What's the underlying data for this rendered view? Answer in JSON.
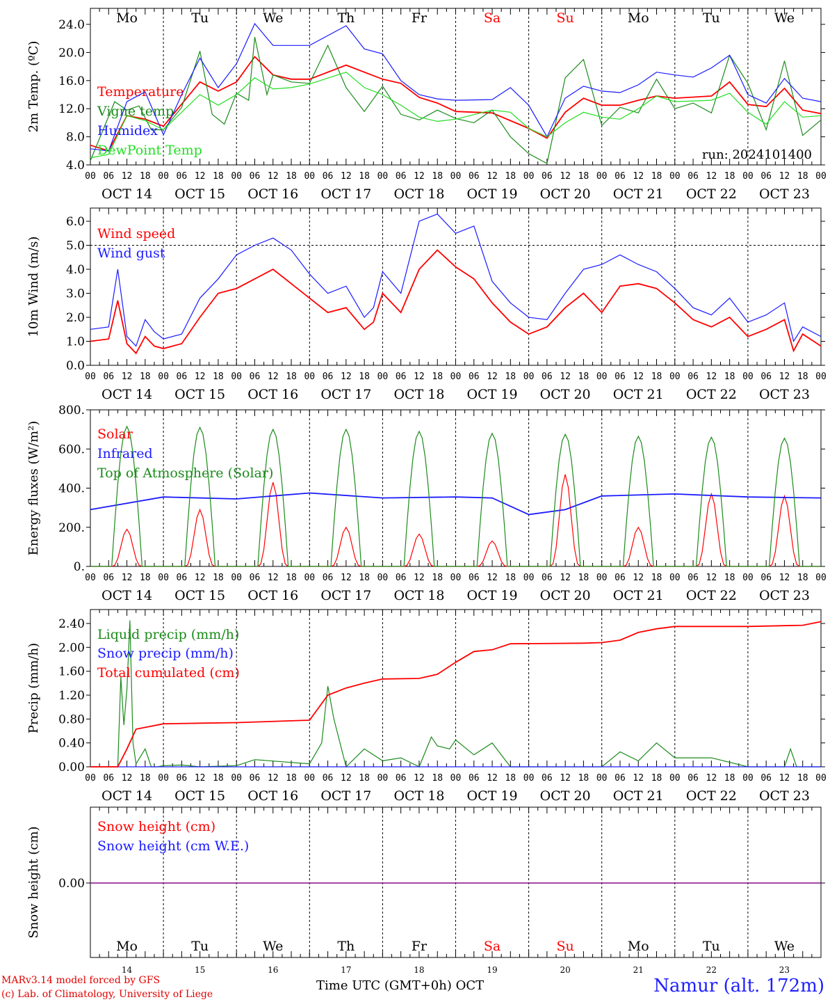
{
  "meta": {
    "run_label": "run: 2024101400"
  },
  "days": {
    "abbr": [
      "Mo",
      "Tu",
      "We",
      "Th",
      "Fr",
      "Sa",
      "Su",
      "Mo",
      "Tu",
      "We"
    ],
    "weekend": [
      false,
      false,
      false,
      false,
      false,
      true,
      true,
      false,
      false,
      false
    ],
    "dates": [
      "OCT 14",
      "OCT 15",
      "OCT 16",
      "OCT 17",
      "OCT 18",
      "OCT 19",
      "OCT 20",
      "OCT 21",
      "OCT 22",
      "OCT 23"
    ],
    "day_numbers": [
      "14",
      "15",
      "16",
      "17",
      "18",
      "19",
      "20",
      "21",
      "22",
      "23"
    ],
    "hour_ticks": [
      "00",
      "06",
      "12",
      "18"
    ],
    "final_tick": "00"
  },
  "footer": {
    "credit_line1": "MARv3.14 model forced by GFS",
    "credit_line2": "(c) Lab. of Climatology, University of Liege",
    "time_axis_label": "Time UTC (GMT+0h)",
    "month": "OCT",
    "station": "Namur (alt. 172m)"
  },
  "colors": {
    "red": "#ff0000",
    "green": "#1a8a1a",
    "blue": "#1a1aff",
    "lightgreen": "#22dd22",
    "purple": "#800080",
    "weekend": "#ff0000"
  },
  "chart_data": [
    {
      "type": "line",
      "ylabel": "2m Temp. (ºC)",
      "ylim": [
        4,
        26
      ],
      "yticks": [
        "4.0",
        "8.0",
        "12.0",
        "16.0",
        "20.0",
        "24.0"
      ],
      "x_unit": "hours since 2024-10-14 00 UTC",
      "show_day_names": true,
      "series": [
        {
          "name": "Temperature",
          "color": "red",
          "x": [
            0,
            6,
            12,
            18,
            24,
            36,
            42,
            48,
            54,
            60,
            66,
            72,
            84,
            96,
            102,
            108,
            114,
            120,
            132,
            144,
            150,
            156,
            162,
            168,
            174,
            180,
            186,
            192,
            204,
            210,
            216,
            222,
            228,
            234,
            240
          ],
          "values": [
            6.8,
            6.0,
            11.0,
            10.5,
            9.5,
            15.8,
            14.5,
            15.8,
            19.4,
            16.8,
            16.2,
            16.2,
            18.2,
            16.2,
            15.6,
            13.6,
            12.8,
            11.6,
            11.4,
            9.2,
            7.8,
            11.5,
            13.5,
            12.5,
            12.5,
            13.2,
            13.8,
            13.5,
            13.8,
            15.8,
            12.6,
            12.3,
            14.9,
            11.8,
            11.3
          ]
        },
        {
          "name": "Vigne temp",
          "color": "green",
          "x": [
            0,
            4,
            8,
            12,
            16,
            20,
            24,
            30,
            36,
            40,
            44,
            48,
            52,
            54,
            58,
            60,
            66,
            72,
            78,
            84,
            90,
            96,
            102,
            108,
            114,
            120,
            126,
            132,
            138,
            144,
            150,
            156,
            162,
            168,
            174,
            180,
            186,
            192,
            198,
            204,
            210,
            216,
            222,
            228,
            234,
            240
          ],
          "values": [
            4.6,
            8.8,
            13.0,
            11.8,
            12.4,
            9.0,
            9.0,
            12.2,
            20.2,
            11.2,
            9.8,
            14.2,
            13.2,
            22.2,
            14.0,
            16.8,
            15.8,
            15.6,
            21.0,
            15.0,
            11.6,
            15.2,
            11.2,
            10.4,
            11.8,
            10.6,
            10.0,
            11.8,
            8.0,
            5.6,
            4.2,
            16.4,
            19.0,
            9.6,
            12.2,
            11.4,
            16.2,
            12.0,
            12.8,
            11.4,
            19.6,
            15.6,
            9.0,
            18.8,
            8.2,
            10.4
          ]
        },
        {
          "name": "Humidex",
          "color": "blue",
          "x": [
            0,
            6,
            12,
            18,
            24,
            30,
            36,
            42,
            48,
            54,
            60,
            72,
            84,
            90,
            96,
            102,
            108,
            114,
            120,
            132,
            138,
            144,
            150,
            156,
            162,
            168,
            174,
            180,
            186,
            192,
            198,
            204,
            210,
            216,
            222,
            228,
            234,
            240
          ],
          "values": [
            6.3,
            6.0,
            13.0,
            14.4,
            8.3,
            14.0,
            19.2,
            15.0,
            18.4,
            24.1,
            21.0,
            21.0,
            23.8,
            20.5,
            19.8,
            16.0,
            14.0,
            13.4,
            13.2,
            13.3,
            15.0,
            12.5,
            8.0,
            13.5,
            15.2,
            14.5,
            14.3,
            15.4,
            17.2,
            16.8,
            16.5,
            17.8,
            19.6,
            14.0,
            12.8,
            16.3,
            13.5,
            13.0
          ]
        },
        {
          "name": "DewPoint Temp",
          "color": "lightgreen",
          "x": [
            0,
            6,
            12,
            18,
            24,
            36,
            42,
            48,
            54,
            60,
            66,
            72,
            84,
            90,
            96,
            102,
            108,
            114,
            120,
            132,
            138,
            144,
            150,
            156,
            162,
            168,
            174,
            180,
            186,
            192,
            204,
            210,
            216,
            222,
            228,
            234,
            240
          ],
          "values": [
            5.0,
            5.5,
            11.0,
            10.3,
            9.0,
            14.0,
            12.5,
            14.0,
            16.4,
            14.8,
            15.0,
            15.5,
            17.2,
            15.0,
            14.0,
            12.5,
            10.8,
            10.2,
            10.5,
            11.8,
            11.5,
            9.2,
            8.0,
            10.0,
            11.5,
            10.8,
            10.5,
            12.0,
            13.8,
            13.0,
            13.2,
            14.2,
            11.5,
            9.8,
            13.0,
            10.8,
            11.0
          ]
        }
      ]
    },
    {
      "type": "line",
      "ylabel": "10m Wind (m/s)",
      "ylim": [
        0,
        6.6
      ],
      "yticks": [
        "0.0",
        "1.0",
        "2.0",
        "3.0",
        "4.0",
        "5.0",
        "6.0"
      ],
      "ref_line": 5.0,
      "x_unit": "hours since 2024-10-14 00 UTC",
      "series": [
        {
          "name": "Wind speed",
          "color": "red",
          "x": [
            0,
            6,
            9,
            12,
            15,
            18,
            21,
            24,
            30,
            36,
            42,
            48,
            54,
            60,
            66,
            72,
            78,
            84,
            90,
            93,
            96,
            102,
            108,
            114,
            120,
            126,
            132,
            138,
            144,
            150,
            156,
            162,
            168,
            174,
            180,
            186,
            192,
            198,
            204,
            210,
            216,
            222,
            228,
            231,
            234,
            240
          ],
          "values": [
            1.0,
            1.1,
            2.7,
            0.9,
            0.5,
            1.2,
            0.8,
            0.7,
            0.9,
            2.0,
            3.0,
            3.2,
            3.6,
            4.0,
            3.4,
            2.8,
            2.2,
            2.4,
            1.5,
            1.8,
            3.0,
            2.2,
            4.0,
            4.8,
            4.1,
            3.6,
            2.6,
            1.8,
            1.3,
            1.6,
            2.4,
            3.0,
            2.2,
            3.3,
            3.4,
            3.2,
            2.6,
            1.9,
            1.6,
            2.0,
            1.2,
            1.5,
            1.9,
            0.6,
            1.3,
            0.8
          ]
        },
        {
          "name": "Wind gust",
          "color": "blue",
          "x": [
            0,
            6,
            9,
            12,
            15,
            18,
            21,
            24,
            30,
            36,
            42,
            48,
            54,
            60,
            66,
            72,
            78,
            84,
            90,
            93,
            96,
            102,
            108,
            114,
            120,
            126,
            132,
            138,
            144,
            150,
            156,
            162,
            168,
            174,
            180,
            186,
            192,
            198,
            204,
            210,
            216,
            222,
            228,
            231,
            234,
            240
          ],
          "values": [
            1.5,
            1.6,
            4.0,
            1.2,
            0.8,
            1.9,
            1.4,
            1.1,
            1.3,
            2.8,
            3.6,
            4.6,
            5.0,
            5.3,
            4.8,
            3.8,
            3.0,
            3.3,
            2.0,
            2.4,
            3.9,
            3.0,
            6.0,
            6.3,
            5.5,
            5.8,
            3.5,
            2.6,
            2.0,
            1.9,
            3.0,
            4.0,
            4.2,
            4.6,
            4.2,
            3.9,
            3.2,
            2.4,
            2.1,
            2.8,
            1.8,
            2.1,
            2.6,
            1.0,
            1.6,
            1.2
          ]
        }
      ]
    },
    {
      "type": "line",
      "ylabel": "Energy fluxes (W/m²)",
      "ylim": [
        0,
        800
      ],
      "yticks": [
        "0.",
        "200.",
        "400.",
        "600.",
        "800."
      ],
      "x_unit": "hours since 2024-10-14 00 UTC",
      "diurnal": {
        "rise": 7,
        "set": 17,
        "noon": 12
      },
      "series": [
        {
          "name": "Solar",
          "color": "red",
          "daily_peaks": [
            190,
            290,
            430,
            200,
            165,
            130,
            470,
            200,
            370,
            360
          ]
        },
        {
          "name": "Infrared",
          "color": "blue",
          "x": [
            0,
            24,
            48,
            72,
            96,
            120,
            132,
            144,
            156,
            168,
            192,
            216,
            240
          ],
          "values": [
            290,
            355,
            345,
            375,
            350,
            355,
            350,
            265,
            290,
            360,
            370,
            355,
            350
          ]
        },
        {
          "name": "Top of Atmosphere (Solar)",
          "color": "green",
          "daily_peaks": [
            715,
            710,
            700,
            700,
            690,
            680,
            675,
            665,
            660,
            655
          ]
        }
      ]
    },
    {
      "type": "line",
      "ylabel": "Precip (mm/h)",
      "ylim": [
        0,
        2.6
      ],
      "yticks": [
        "0.00",
        "0.40",
        "0.80",
        "1.20",
        "1.60",
        "2.00",
        "2.40"
      ],
      "x_unit": "hours since 2024-10-14 00 UTC",
      "series": [
        {
          "name": "Liquid precip (mm/h)",
          "color": "green",
          "x": [
            0,
            9,
            10,
            11,
            12,
            13,
            14,
            15,
            18,
            20,
            22,
            24,
            30,
            36,
            48,
            54,
            72,
            76,
            78,
            80,
            84,
            90,
            96,
            102,
            108,
            112,
            114,
            118,
            120,
            126,
            132,
            138,
            144,
            168,
            174,
            180,
            186,
            192,
            204,
            216,
            228,
            230,
            232,
            240
          ],
          "values": [
            0,
            0,
            1.5,
            0.7,
            1.3,
            2.45,
            0.4,
            0.05,
            0.3,
            0.0,
            0.0,
            0.02,
            0.03,
            0.0,
            0.02,
            0.12,
            0.05,
            0.4,
            1.35,
            0.8,
            0.0,
            0.3,
            0.1,
            0.15,
            0.0,
            0.5,
            0.35,
            0.3,
            0.45,
            0.2,
            0.4,
            0.0,
            0.0,
            0.0,
            0.25,
            0.1,
            0.4,
            0.15,
            0.15,
            0.0,
            0.0,
            0.3,
            0.0,
            0.0
          ]
        },
        {
          "name": "Snow precip (mm/h)",
          "color": "blue",
          "x": [
            0,
            240
          ],
          "values": [
            0,
            0
          ]
        },
        {
          "name": "Total cumulated (cm)",
          "color": "red",
          "x": [
            0,
            9,
            12,
            15,
            24,
            36,
            48,
            66,
            72,
            78,
            84,
            90,
            96,
            108,
            114,
            120,
            126,
            132,
            138,
            162,
            168,
            174,
            180,
            186,
            192,
            216,
            234,
            240
          ],
          "values": [
            0,
            0,
            0.3,
            0.63,
            0.72,
            0.73,
            0.74,
            0.77,
            0.78,
            1.2,
            1.32,
            1.4,
            1.47,
            1.48,
            1.55,
            1.75,
            1.93,
            1.96,
            2.06,
            2.07,
            2.08,
            2.12,
            2.25,
            2.31,
            2.35,
            2.35,
            2.37,
            2.43
          ]
        }
      ]
    },
    {
      "type": "line",
      "ylabel": "Snow height (cm)",
      "yticks": [
        "0.00"
      ],
      "x_unit": "hours since 2024-10-14 00 UTC",
      "series": [
        {
          "name": "Snow height (cm)",
          "color": "red",
          "x": [
            0,
            240
          ],
          "values": [
            0,
            0
          ]
        },
        {
          "name": "Snow height (cm W.E.)",
          "color": "blue",
          "x": [
            0,
            240
          ],
          "values": [
            0,
            0
          ]
        }
      ]
    }
  ]
}
